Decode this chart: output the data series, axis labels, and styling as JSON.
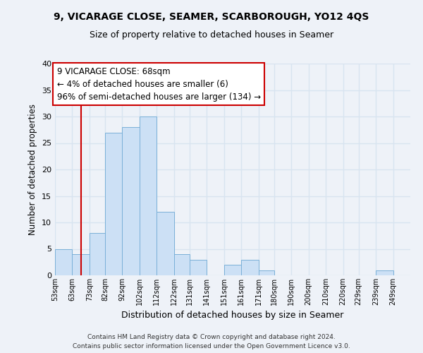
{
  "title": "9, VICARAGE CLOSE, SEAMER, SCARBOROUGH, YO12 4QS",
  "subtitle": "Size of property relative to detached houses in Seamer",
  "xlabel": "Distribution of detached houses by size in Seamer",
  "ylabel": "Number of detached properties",
  "bin_labels": [
    "53sqm",
    "63sqm",
    "73sqm",
    "82sqm",
    "92sqm",
    "102sqm",
    "112sqm",
    "122sqm",
    "131sqm",
    "141sqm",
    "151sqm",
    "161sqm",
    "171sqm",
    "180sqm",
    "190sqm",
    "200sqm",
    "210sqm",
    "220sqm",
    "229sqm",
    "239sqm",
    "249sqm"
  ],
  "bar_heights": [
    5,
    4,
    8,
    27,
    28,
    30,
    12,
    4,
    3,
    0,
    2,
    3,
    1,
    0,
    0,
    0,
    0,
    0,
    0,
    1,
    0
  ],
  "bar_color": "#cce0f5",
  "bar_edge_color": "#7ab0d8",
  "bin_edges": [
    53,
    63,
    73,
    82,
    92,
    102,
    112,
    122,
    131,
    141,
    151,
    161,
    171,
    180,
    190,
    200,
    210,
    220,
    229,
    239,
    249,
    259
  ],
  "vline_x": 68,
  "vline_color": "#cc0000",
  "ylim": [
    0,
    40
  ],
  "yticks": [
    0,
    5,
    10,
    15,
    20,
    25,
    30,
    35,
    40
  ],
  "annotation_line1": "9 VICARAGE CLOSE: 68sqm",
  "annotation_line2": "← 4% of detached houses are smaller (6)",
  "annotation_line3": "96% of semi-detached houses are larger (134) →",
  "annotation_box_color": "#ffffff",
  "annotation_box_edge": "#cc0000",
  "footer_line1": "Contains HM Land Registry data © Crown copyright and database right 2024.",
  "footer_line2": "Contains public sector information licensed under the Open Government Licence v3.0.",
  "bg_color": "#eef2f8",
  "grid_color": "#d8e4f0"
}
